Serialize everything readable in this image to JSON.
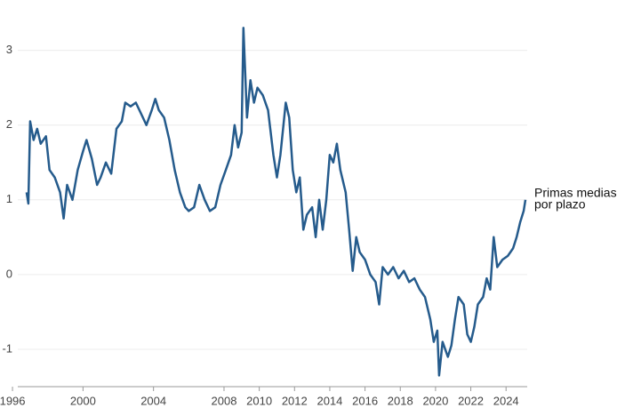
{
  "chart_data": {
    "type": "line",
    "annotation": [
      "Primas medias",
      "por plazo"
    ],
    "series": [
      {
        "name": "Primas medias por plazo",
        "color": "#255b8c",
        "x": [
          1996.8,
          1996.9,
          1997.0,
          1997.2,
          1997.4,
          1997.6,
          1997.9,
          1998.1,
          1998.4,
          1998.7,
          1998.9,
          1999.1,
          1999.4,
          1999.7,
          2000.0,
          2000.2,
          2000.5,
          2000.8,
          2001.0,
          2001.3,
          2001.6,
          2001.9,
          2002.2,
          2002.4,
          2002.7,
          2003.0,
          2003.3,
          2003.6,
          2003.9,
          2004.1,
          2004.3,
          2004.6,
          2004.9,
          2005.2,
          2005.5,
          2005.8,
          2006.0,
          2006.3,
          2006.6,
          2006.9,
          2007.2,
          2007.5,
          2007.8,
          2008.1,
          2008.4,
          2008.6,
          2008.8,
          2009.0,
          2009.1,
          2009.3,
          2009.5,
          2009.7,
          2009.9,
          2010.2,
          2010.5,
          2010.8,
          2011.0,
          2011.2,
          2011.5,
          2011.7,
          2011.9,
          2012.1,
          2012.3,
          2012.5,
          2012.7,
          2013.0,
          2013.2,
          2013.4,
          2013.6,
          2013.8,
          2014.0,
          2014.2,
          2014.4,
          2014.6,
          2014.9,
          2015.1,
          2015.3,
          2015.5,
          2015.7,
          2016.0,
          2016.3,
          2016.6,
          2016.8,
          2017.0,
          2017.3,
          2017.6,
          2017.9,
          2018.2,
          2018.5,
          2018.8,
          2019.1,
          2019.4,
          2019.7,
          2019.9,
          2020.1,
          2020.2,
          2020.4,
          2020.7,
          2020.9,
          2021.1,
          2021.3,
          2021.6,
          2021.8,
          2022.0,
          2022.2,
          2022.4,
          2022.7,
          2022.9,
          2023.1,
          2023.3,
          2023.5,
          2023.8,
          2024.1,
          2024.4,
          2024.6,
          2024.8,
          2025.0,
          2025.1
        ],
        "values": [
          1.1,
          0.95,
          2.05,
          1.8,
          1.95,
          1.75,
          1.85,
          1.4,
          1.3,
          1.1,
          0.75,
          1.2,
          1.0,
          1.4,
          1.65,
          1.8,
          1.55,
          1.2,
          1.3,
          1.5,
          1.35,
          1.95,
          2.05,
          2.3,
          2.25,
          2.3,
          2.15,
          2.0,
          2.2,
          2.35,
          2.2,
          2.1,
          1.8,
          1.4,
          1.1,
          0.9,
          0.85,
          0.9,
          1.2,
          1.0,
          0.85,
          0.9,
          1.2,
          1.4,
          1.6,
          2.0,
          1.7,
          1.9,
          3.3,
          2.1,
          2.6,
          2.3,
          2.5,
          2.4,
          2.2,
          1.6,
          1.3,
          1.6,
          2.3,
          2.1,
          1.4,
          1.1,
          1.3,
          0.6,
          0.8,
          0.9,
          0.5,
          1.0,
          0.6,
          1.0,
          1.6,
          1.5,
          1.75,
          1.4,
          1.1,
          0.6,
          0.05,
          0.5,
          0.3,
          0.2,
          0.0,
          -0.1,
          -0.4,
          0.1,
          0.0,
          0.1,
          -0.05,
          0.05,
          -0.1,
          -0.05,
          -0.2,
          -0.3,
          -0.6,
          -0.9,
          -0.75,
          -1.35,
          -0.9,
          -1.1,
          -0.95,
          -0.6,
          -0.3,
          -0.4,
          -0.8,
          -0.9,
          -0.7,
          -0.4,
          -0.3,
          -0.05,
          -0.2,
          0.5,
          0.1,
          0.2,
          0.25,
          0.35,
          0.5,
          0.7,
          0.85,
          1.0
        ]
      }
    ],
    "xlim": [
      1996.3,
      2025.2
    ],
    "xticks": [
      1996,
      2000,
      2004,
      2008,
      2010,
      2012,
      2014,
      2016,
      2018,
      2020,
      2022,
      2024
    ],
    "ylim": [
      -1.5,
      3.4
    ],
    "yticks": [
      -1,
      0,
      1,
      2,
      3
    ],
    "grid": true
  }
}
